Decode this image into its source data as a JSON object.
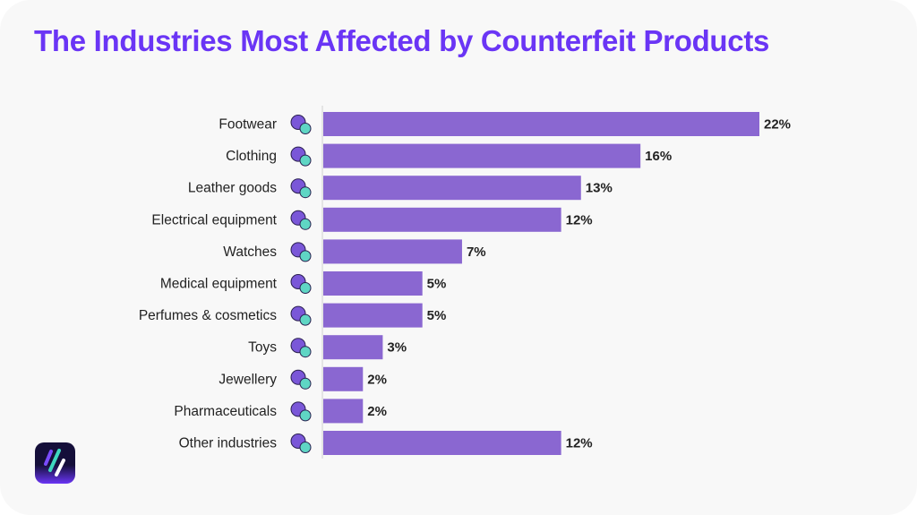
{
  "chart_data": {
    "type": "bar",
    "orientation": "horizontal",
    "title": "The Industries Most Affected by Counterfeit Products",
    "categories": [
      "Footwear",
      "Clothing",
      "Leather goods",
      "Electrical equipment",
      "Watches",
      "Medical equipment",
      "Perfumes & cosmetics",
      "Toys",
      "Jewellery",
      "Pharmaceuticals",
      "Other industries"
    ],
    "values": [
      22,
      16,
      13,
      12,
      7,
      5,
      5,
      3,
      2,
      2,
      12
    ],
    "data_labels": [
      "22%",
      "16%",
      "13%",
      "12%",
      "7%",
      "5%",
      "5%",
      "3%",
      "2%",
      "2%",
      "12%"
    ],
    "unit": "%",
    "xlim": [
      0,
      22
    ],
    "grid": false,
    "legend": "none",
    "colors": {
      "bar": "#8a67d1",
      "title": "#6a35f5",
      "label": "#222222",
      "icon_teal": "#5fd6c4",
      "icon_purple": "#7a57d8"
    },
    "icons": [
      "sneaker-icon",
      "tshirt-icon",
      "wallet-icon",
      "plug-icon",
      "watch-icon",
      "medical-cross-icon",
      "perfume-icon",
      "teddy-bear-icon",
      "ring-icon",
      "pills-icon",
      "pills-icon"
    ]
  }
}
